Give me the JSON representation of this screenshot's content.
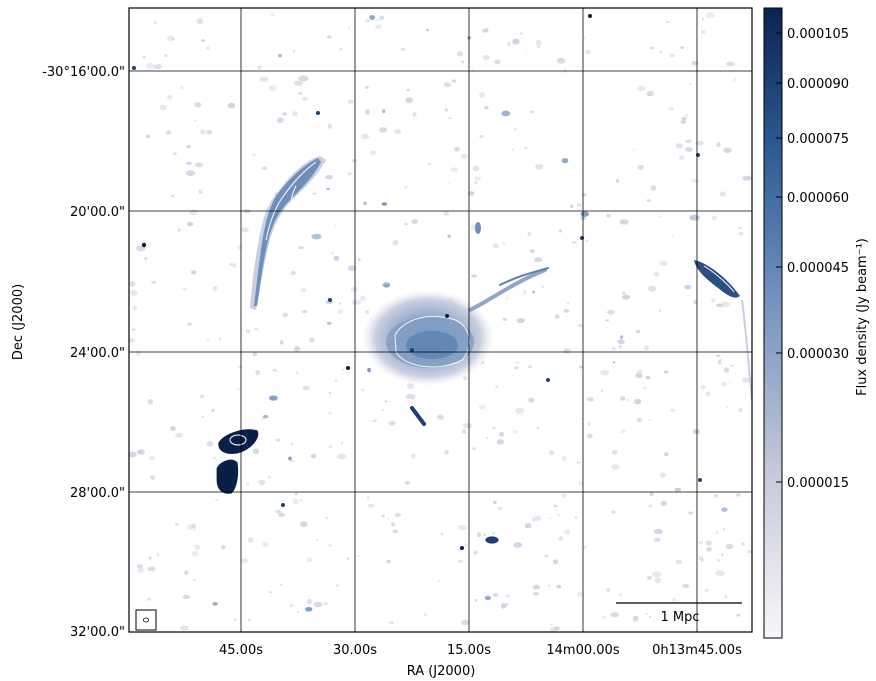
{
  "axes": {
    "xlabel": "RA (J2000)",
    "ylabel": "Dec (J2000)",
    "x_ticks": [
      "45.00s",
      "30.00s",
      "15.00s",
      "14m00.00s",
      "0h13m45.00s"
    ],
    "y_ticks": [
      "-30°16'00.0\"",
      "20'00.0\"",
      "24'00.0\"",
      "28'00.0\"",
      "32'00.0\""
    ]
  },
  "colorbar": {
    "label": "Flux density (Jy beam⁻¹)",
    "ticks": [
      {
        "label": "0.000105",
        "value": 0.000105
      },
      {
        "label": "0.000090",
        "value": 9e-05
      },
      {
        "label": "0.000075",
        "value": 7.5e-05
      },
      {
        "label": "0.000060",
        "value": 6e-05
      },
      {
        "label": "0.000045",
        "value": 4.5e-05
      },
      {
        "label": "0.000030",
        "value": 3e-05
      },
      {
        "label": "0.000015",
        "value": 1.5e-05
      }
    ],
    "colors": [
      "#f7f7fa",
      "#c9cbdc",
      "#6f90bb",
      "#2c5a92",
      "#0b2350"
    ]
  },
  "scalebar": {
    "label": "1 Mpc"
  },
  "colors": {
    "faint": "#c9cfe0",
    "mid": "#6e8fb9",
    "bright": "#1d3f73",
    "core": "#0a1f45",
    "contour": "#ffffff",
    "grid": "#000000"
  }
}
